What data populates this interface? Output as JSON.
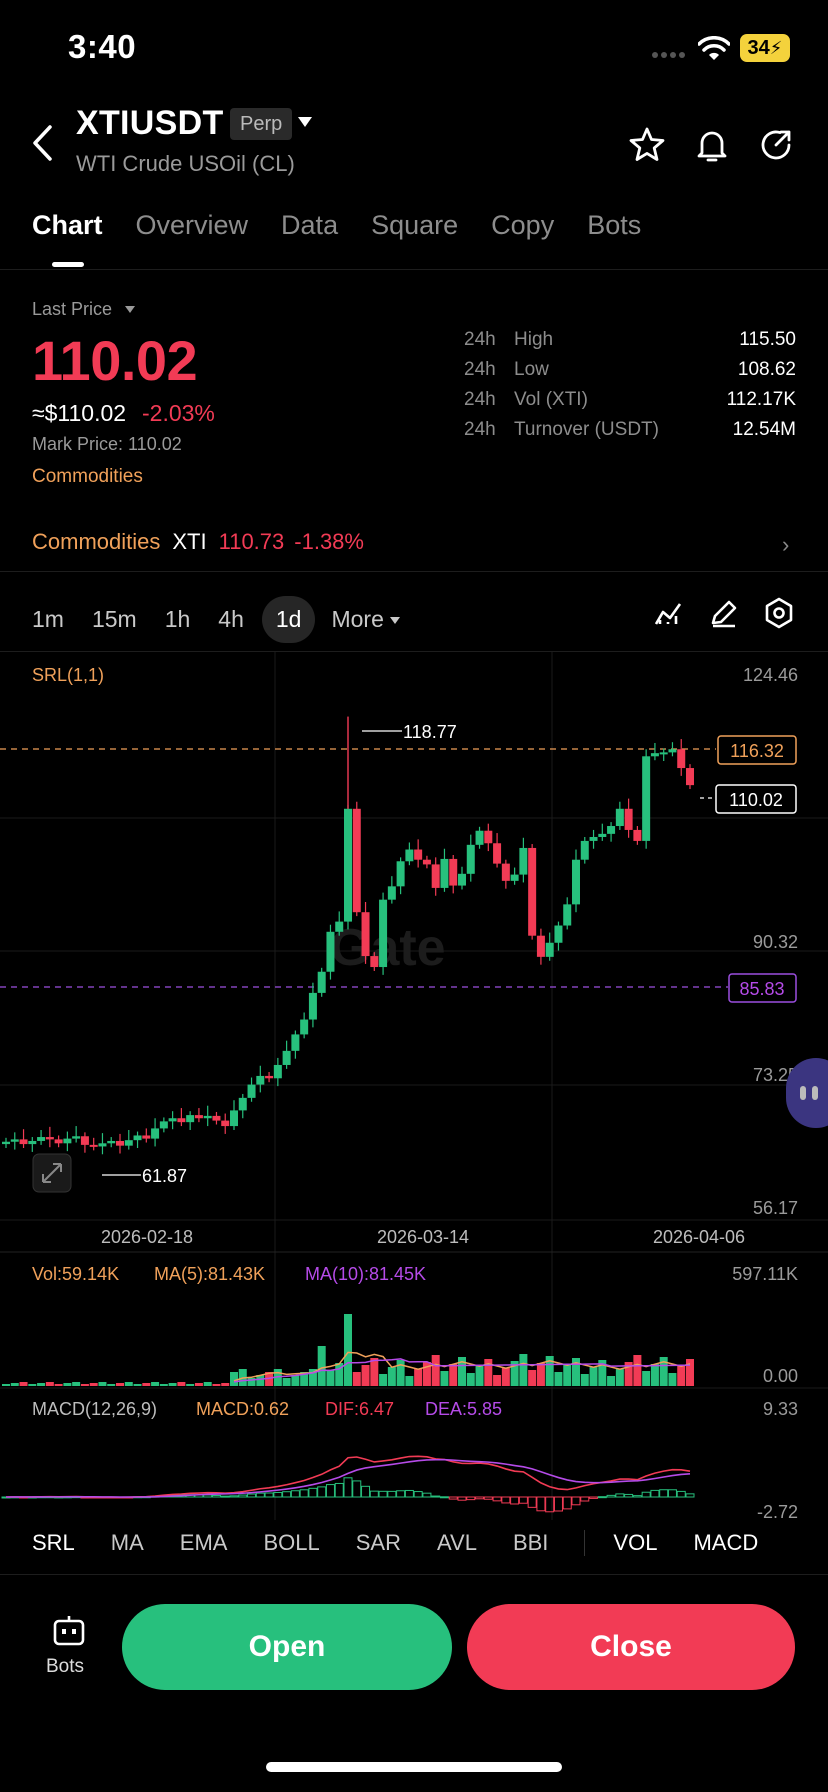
{
  "status": {
    "time": "3:40",
    "battery": "34"
  },
  "header": {
    "symbol": "XTIUSDT",
    "badge": "Perp",
    "subtitle": "WTI Crude USOil (CL)",
    "icons": [
      "back-icon",
      "star-icon",
      "bell-icon",
      "share-icon"
    ]
  },
  "tabs": [
    "Chart",
    "Overview",
    "Data",
    "Square",
    "Copy",
    "Bots"
  ],
  "price": {
    "last_label": "Last Price",
    "last": "110.02",
    "usd": "≈$110.02",
    "change": "-2.03%",
    "mark": "Mark Price: 110.02",
    "category": "Commodities"
  },
  "stats": [
    {
      "period": "24h",
      "label": "High",
      "value": "115.50"
    },
    {
      "period": "24h",
      "label": "Low",
      "value": "108.62"
    },
    {
      "period": "24h",
      "label": "Vol (XTI)",
      "value": "112.17K"
    },
    {
      "period": "24h",
      "label": "Turnover (USDT)",
      "value": "12.54M"
    }
  ],
  "ticker": {
    "category": "Commodities",
    "symbol": "XTI",
    "price": "110.73",
    "change": "-1.38%"
  },
  "intervals": [
    "1m",
    "15m",
    "1h",
    "4h",
    "1d",
    "More"
  ],
  "chart_labels": {
    "srl": "SRL(1,1)",
    "y_ticks": [
      "124.46",
      "90.32",
      "73.25",
      "56.17"
    ],
    "high_marker": "118.77",
    "low_marker": "61.87",
    "line_orange": "116.32",
    "line_white": "110.02",
    "line_purple": "85.83",
    "dates": [
      "2026-02-18",
      "2026-03-14",
      "2026-04-06"
    ],
    "vol_label": "Vol:59.14K",
    "ma5_label": "MA(5):81.43K",
    "ma10_label": "MA(10):81.45K",
    "vol_max": "597.11K",
    "vol_min": "0.00",
    "macd_title": "MACD(12,26,9)",
    "macd_val": "MACD:0.62",
    "dif_val": "DIF:6.47",
    "dea_val": "DEA:5.85",
    "macd_max": "9.33",
    "macd_min": "-2.72"
  },
  "colors": {
    "up": "#27c07d",
    "down": "#f23b55",
    "orange": "#f0a15a",
    "purple": "#b54be8"
  },
  "indicators": [
    "SRL",
    "MA",
    "EMA",
    "BOLL",
    "SAR",
    "AVL",
    "BBI",
    "VOL",
    "MACD"
  ],
  "bottom": {
    "bots": "Bots",
    "open": "Open",
    "close": "Close"
  }
}
